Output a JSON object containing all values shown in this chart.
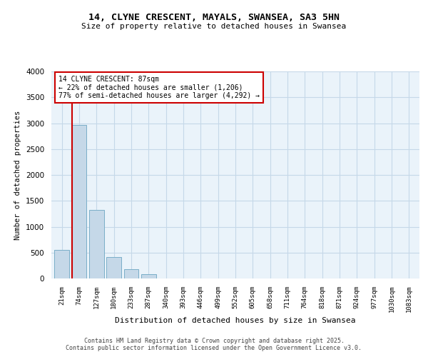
{
  "title_line1": "14, CLYNE CRESCENT, MAYALS, SWANSEA, SA3 5HN",
  "title_line2": "Size of property relative to detached houses in Swansea",
  "xlabel": "Distribution of detached houses by size in Swansea",
  "ylabel": "Number of detached properties",
  "bar_labels": [
    "21sqm",
    "74sqm",
    "127sqm",
    "180sqm",
    "233sqm",
    "287sqm",
    "340sqm",
    "393sqm",
    "446sqm",
    "499sqm",
    "552sqm",
    "605sqm",
    "658sqm",
    "711sqm",
    "764sqm",
    "818sqm",
    "871sqm",
    "924sqm",
    "977sqm",
    "1030sqm",
    "1083sqm"
  ],
  "bar_values": [
    550,
    2970,
    1330,
    420,
    175,
    85,
    0,
    0,
    0,
    0,
    0,
    0,
    0,
    0,
    0,
    0,
    0,
    0,
    0,
    0,
    0
  ],
  "bar_color": "#c5d8e8",
  "bar_edge_color": "#7aaec8",
  "grid_color": "#c5d8e8",
  "background_color": "#eaf3fa",
  "vline_color": "#cc0000",
  "annotation_text": "14 CLYNE CRESCENT: 87sqm\n← 22% of detached houses are smaller (1,206)\n77% of semi-detached houses are larger (4,292) →",
  "annotation_box_color": "#cc0000",
  "ylim": [
    0,
    4000
  ],
  "yticks": [
    0,
    500,
    1000,
    1500,
    2000,
    2500,
    3000,
    3500,
    4000
  ],
  "footer_line1": "Contains HM Land Registry data © Crown copyright and database right 2025.",
  "footer_line2": "Contains public sector information licensed under the Open Government Licence v3.0."
}
